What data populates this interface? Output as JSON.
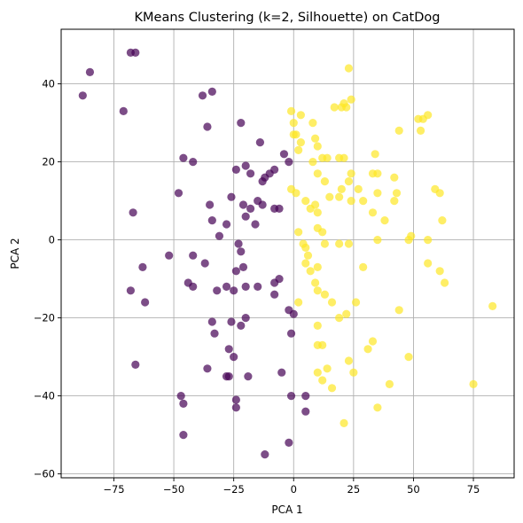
{
  "chart_data": {
    "type": "scatter",
    "title": "KMeans Clustering (k=2, Silhouette) on CatDog",
    "xlabel": "PCA 1",
    "ylabel": "PCA 2",
    "xlim": [
      -97,
      92
    ],
    "ylim": [
      -61,
      54
    ],
    "xticks": [
      -75,
      -50,
      -25,
      0,
      25,
      50,
      75
    ],
    "yticks": [
      -60,
      -40,
      -20,
      0,
      20,
      40
    ],
    "grid": true,
    "legend": "none",
    "marker_alpha": 0.7,
    "series": [
      {
        "color": "#440154",
        "points": [
          [
            -85,
            43
          ],
          [
            -88,
            37
          ],
          [
            -68,
            48
          ],
          [
            -66,
            48
          ],
          [
            -71,
            33
          ],
          [
            -38,
            37
          ],
          [
            -34,
            38
          ],
          [
            -36,
            29
          ],
          [
            -22,
            30
          ],
          [
            -14,
            25
          ],
          [
            -4,
            22
          ],
          [
            -2,
            20
          ],
          [
            -46,
            21
          ],
          [
            -42,
            20
          ],
          [
            -8,
            18
          ],
          [
            -24,
            18
          ],
          [
            -20,
            19
          ],
          [
            -18,
            17
          ],
          [
            -10,
            17
          ],
          [
            -12,
            16
          ],
          [
            -13,
            15
          ],
          [
            -48,
            12
          ],
          [
            -26,
            11
          ],
          [
            -15,
            10
          ],
          [
            -13,
            9
          ],
          [
            -35,
            9
          ],
          [
            -21,
            9
          ],
          [
            -18,
            8
          ],
          [
            -8,
            8
          ],
          [
            -6,
            8
          ],
          [
            -67,
            7
          ],
          [
            -20,
            6
          ],
          [
            -34,
            5
          ],
          [
            -28,
            4
          ],
          [
            -16,
            4
          ],
          [
            -31,
            1
          ],
          [
            -23,
            -1
          ],
          [
            -52,
            -4
          ],
          [
            -42,
            -4
          ],
          [
            -37,
            -6
          ],
          [
            -22,
            -3
          ],
          [
            -21,
            -7
          ],
          [
            -24,
            -8
          ],
          [
            -63,
            -7
          ],
          [
            -44,
            -11
          ],
          [
            -42,
            -12
          ],
          [
            -68,
            -13
          ],
          [
            -62,
            -16
          ],
          [
            -32,
            -13
          ],
          [
            -28,
            -12
          ],
          [
            -25,
            -13
          ],
          [
            -20,
            -12
          ],
          [
            -15,
            -12
          ],
          [
            -8,
            -11
          ],
          [
            -6,
            -10
          ],
          [
            -8,
            -14
          ],
          [
            -34,
            -21
          ],
          [
            -26,
            -21
          ],
          [
            -20,
            -20
          ],
          [
            -22,
            -22
          ],
          [
            -2,
            -18
          ],
          [
            0,
            -19
          ],
          [
            -1,
            -24
          ],
          [
            -33,
            -24
          ],
          [
            -27,
            -28
          ],
          [
            -66,
            -32
          ],
          [
            -36,
            -33
          ],
          [
            -25,
            -30
          ],
          [
            -28,
            -35
          ],
          [
            -27,
            -35
          ],
          [
            -19,
            -35
          ],
          [
            -5,
            -34
          ],
          [
            -1,
            -40
          ],
          [
            -47,
            -40
          ],
          [
            -46,
            -42
          ],
          [
            -24,
            -41
          ],
          [
            -24,
            -43
          ],
          [
            5,
            -40
          ],
          [
            5,
            -44
          ],
          [
            -46,
            -50
          ],
          [
            -2,
            -52
          ],
          [
            -12,
            -55
          ]
        ]
      },
      {
        "color": "#fde725",
        "points": [
          [
            23,
            44
          ],
          [
            -1,
            33
          ],
          [
            3,
            32
          ],
          [
            8,
            30
          ],
          [
            0,
            30
          ],
          [
            0,
            27
          ],
          [
            1,
            27
          ],
          [
            3,
            25
          ],
          [
            9,
            26
          ],
          [
            10,
            24
          ],
          [
            2,
            23
          ],
          [
            20,
            34
          ],
          [
            21,
            35
          ],
          [
            22,
            34
          ],
          [
            24,
            36
          ],
          [
            17,
            34
          ],
          [
            52,
            31
          ],
          [
            54,
            31
          ],
          [
            56,
            32
          ],
          [
            53,
            28
          ],
          [
            44,
            28
          ],
          [
            34,
            22
          ],
          [
            12,
            21
          ],
          [
            14,
            21
          ],
          [
            8,
            20
          ],
          [
            19,
            21
          ],
          [
            21,
            21
          ],
          [
            10,
            17
          ],
          [
            24,
            17
          ],
          [
            33,
            17
          ],
          [
            35,
            17
          ],
          [
            42,
            16
          ],
          [
            23,
            15
          ],
          [
            13,
            15
          ],
          [
            20,
            13
          ],
          [
            27,
            13
          ],
          [
            35,
            12
          ],
          [
            43,
            12
          ],
          [
            59,
            13
          ],
          [
            61,
            12
          ],
          [
            15,
            11
          ],
          [
            19,
            11
          ],
          [
            1,
            12
          ],
          [
            -1,
            13
          ],
          [
            5,
            10
          ],
          [
            9,
            9
          ],
          [
            24,
            10
          ],
          [
            29,
            10
          ],
          [
            42,
            10
          ],
          [
            7,
            8
          ],
          [
            33,
            7
          ],
          [
            38,
            5
          ],
          [
            10,
            7
          ],
          [
            62,
            5
          ],
          [
            10,
            3
          ],
          [
            12,
            2
          ],
          [
            2,
            2
          ],
          [
            13,
            -1
          ],
          [
            4,
            -1
          ],
          [
            5,
            -2
          ],
          [
            19,
            -1
          ],
          [
            23,
            -1
          ],
          [
            35,
            0
          ],
          [
            48,
            0
          ],
          [
            49,
            1
          ],
          [
            56,
            0
          ],
          [
            6,
            -4
          ],
          [
            5,
            -6
          ],
          [
            7,
            -8
          ],
          [
            10,
            -7
          ],
          [
            29,
            -7
          ],
          [
            56,
            -6
          ],
          [
            61,
            -8
          ],
          [
            63,
            -11
          ],
          [
            9,
            -11
          ],
          [
            10,
            -13
          ],
          [
            13,
            -14
          ],
          [
            2,
            -16
          ],
          [
            16,
            -16
          ],
          [
            26,
            -16
          ],
          [
            44,
            -18
          ],
          [
            19,
            -20
          ],
          [
            22,
            -19
          ],
          [
            83,
            -17
          ],
          [
            10,
            -22
          ],
          [
            33,
            -26
          ],
          [
            31,
            -28
          ],
          [
            10,
            -27
          ],
          [
            12,
            -27
          ],
          [
            48,
            -30
          ],
          [
            23,
            -31
          ],
          [
            14,
            -33
          ],
          [
            25,
            -34
          ],
          [
            10,
            -34
          ],
          [
            12,
            -36
          ],
          [
            40,
            -37
          ],
          [
            75,
            -37
          ],
          [
            16,
            -38
          ],
          [
            35,
            -43
          ],
          [
            21,
            -47
          ]
        ]
      }
    ]
  },
  "colors": {
    "cluster_0": "#440154",
    "cluster_1": "#fde725",
    "grid": "#b0b0b0",
    "frame": "#000000"
  }
}
